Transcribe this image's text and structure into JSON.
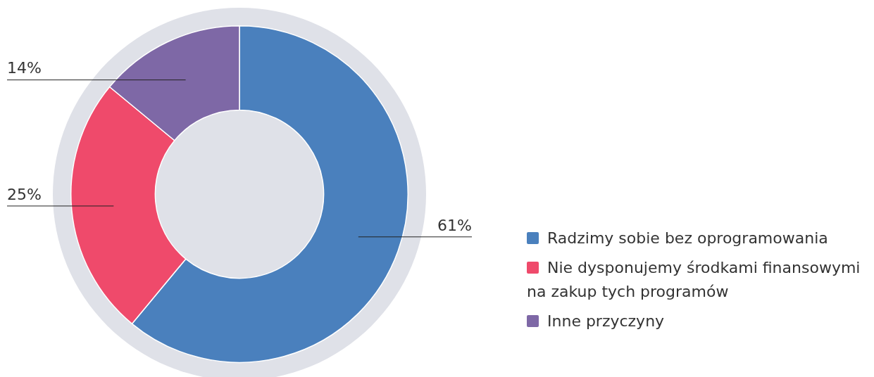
{
  "chart_data": {
    "type": "donut",
    "categories": [
      "Radzimy sobie bez oprogramowania",
      "Nie dysponujemy środkami finansowymi na zakup tych programów",
      "Inne przyczyny"
    ],
    "values": [
      61,
      25,
      14
    ],
    "colors": [
      "#4a80bd",
      "#ef4a6b",
      "#7e68a6"
    ],
    "value_labels": [
      "61%",
      "25%",
      "14%"
    ],
    "legend": "right"
  }
}
